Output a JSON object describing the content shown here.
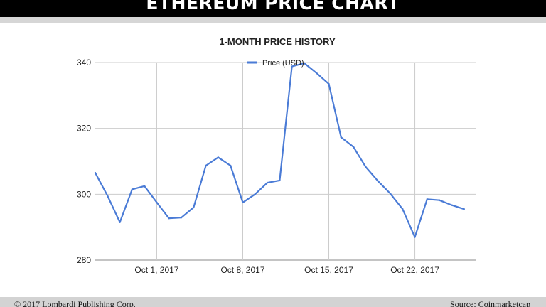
{
  "header": {
    "title": "ETHEREUM PRICE CHART"
  },
  "footer": {
    "left": "© 2017 Lombardi Publishing Corp.",
    "right": "Source: Coinmarketcap"
  },
  "colors": {
    "series": "#4a7bd6",
    "grid": "#cccccc",
    "banner": "#000000",
    "footer": "#d3d3d3"
  },
  "chart_data": {
    "type": "line",
    "title": "1-MONTH PRICE HISTORY",
    "xlabel": "",
    "ylabel": "",
    "xlim": [
      "2017-09-26",
      "2017-10-27"
    ],
    "ylim": [
      280,
      340
    ],
    "y_ticks": [
      280,
      300,
      320,
      340
    ],
    "x_ticks": [
      {
        "date": "2017-10-01",
        "label": "Oct 1, 2017"
      },
      {
        "date": "2017-10-08",
        "label": "Oct 8, 2017"
      },
      {
        "date": "2017-10-15",
        "label": "Oct 15, 2017"
      },
      {
        "date": "2017-10-22",
        "label": "Oct 22, 2017"
      }
    ],
    "grid": true,
    "legend_position": "top-center",
    "series": [
      {
        "name": "Price (USD)",
        "color": "#4a7bd6",
        "x": [
          "2017-09-26",
          "2017-09-27",
          "2017-09-28",
          "2017-09-29",
          "2017-09-30",
          "2017-10-01",
          "2017-10-02",
          "2017-10-03",
          "2017-10-04",
          "2017-10-05",
          "2017-10-06",
          "2017-10-07",
          "2017-10-08",
          "2017-10-09",
          "2017-10-10",
          "2017-10-11",
          "2017-10-12",
          "2017-10-13",
          "2017-10-14",
          "2017-10-15",
          "2017-10-16",
          "2017-10-17",
          "2017-10-18",
          "2017-10-19",
          "2017-10-20",
          "2017-10-21",
          "2017-10-22",
          "2017-10-23",
          "2017-10-24",
          "2017-10-25",
          "2017-10-26"
        ],
        "values": [
          306.5,
          299.5,
          291.5,
          301.5,
          302.5,
          297.5,
          292.7,
          292.9,
          296.0,
          308.7,
          311.2,
          308.7,
          297.5,
          300.0,
          303.5,
          304.2,
          338.8,
          339.8,
          336.8,
          333.5,
          317.3,
          314.4,
          308.3,
          304.0,
          300.2,
          295.5,
          287.0,
          298.5,
          298.2,
          296.7,
          295.5
        ]
      }
    ]
  }
}
